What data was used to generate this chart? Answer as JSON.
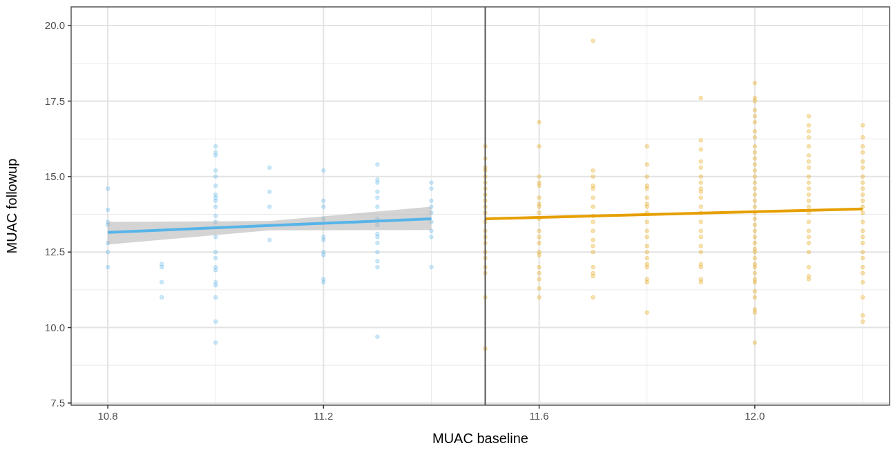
{
  "chart_data": {
    "type": "scatter",
    "xlabel": "MUAC baseline",
    "ylabel": "MUAC followup",
    "xlim": [
      10.732,
      12.25
    ],
    "xticks": [
      10.8,
      11.2,
      11.6,
      {
        "value": 12,
        "label": "12.0"
      }
    ],
    "ylim": [
      7.43,
      20.62
    ],
    "yticks": [
      7.5,
      {
        "value": 10,
        "label": "10.0"
      },
      12.5,
      {
        "value": 15,
        "label": "15.0"
      },
      17.5,
      {
        "value": 20,
        "label": "20.0"
      }
    ],
    "grid": true,
    "marker": "circle",
    "ref_lines": [
      {
        "axis": "x",
        "value": 11.5,
        "color": "#555555"
      }
    ],
    "series": [
      {
        "color": "#56b4e9",
        "x": [
          10.8,
          10.8,
          10.8,
          10.8,
          10.8,
          10.8,
          10.8,
          10.9,
          10.9,
          10.9,
          10.9,
          11.0,
          11.0,
          11.0,
          11.0,
          11.0,
          11.0,
          11.0,
          11.0,
          11.0,
          11.0,
          11.0,
          11.0,
          11.0,
          11.0,
          11.0,
          11.0,
          11.0,
          11.0,
          11.0,
          11.0,
          11.0,
          11.0,
          11.1,
          11.1,
          11.1,
          11.1,
          11.2,
          11.2,
          11.2,
          11.2,
          11.2,
          11.2,
          11.2,
          11.2,
          11.2,
          11.2,
          11.3,
          11.3,
          11.3,
          11.3,
          11.3,
          11.3,
          11.3,
          11.3,
          11.3,
          11.3,
          11.3,
          11.3,
          11.3,
          11.3,
          11.3,
          11.4,
          11.4,
          11.4,
          11.4,
          11.4,
          11.4,
          11.4,
          11.4,
          11.4
        ],
        "values": [
          14.6,
          13.9,
          13.5,
          13.4,
          12.8,
          12.5,
          12.0,
          12.1,
          12.0,
          11.5,
          11.0,
          16.0,
          15.8,
          15.7,
          15.2,
          15.0,
          14.7,
          14.4,
          14.3,
          14.2,
          14.0,
          13.7,
          13.5,
          13.0,
          12.5,
          12.3,
          12.0,
          11.9,
          11.5,
          11.4,
          11.0,
          10.2,
          9.5,
          15.3,
          14.5,
          14.0,
          12.9,
          15.2,
          14.2,
          14.0,
          13.6,
          13.0,
          12.9,
          12.5,
          12.4,
          11.6,
          11.5,
          15.4,
          14.9,
          14.8,
          14.5,
          14.3,
          14.0,
          13.6,
          13.4,
          13.1,
          13.0,
          12.8,
          12.5,
          12.2,
          12.0,
          9.7,
          14.8,
          14.6,
          14.2,
          14.0,
          13.8,
          13.5,
          13.2,
          13.0,
          12.0
        ]
      },
      {
        "color": "#e69f00",
        "x": [
          11.5,
          11.5,
          11.5,
          11.5,
          11.5,
          11.5,
          11.5,
          11.5,
          11.5,
          11.5,
          11.5,
          11.5,
          11.5,
          11.5,
          11.5,
          11.5,
          11.5,
          11.5,
          11.5,
          11.5,
          11.5,
          11.6,
          11.6,
          11.6,
          11.6,
          11.6,
          11.6,
          11.6,
          11.6,
          11.6,
          11.6,
          11.6,
          11.6,
          11.6,
          11.6,
          11.6,
          11.6,
          11.6,
          11.6,
          11.6,
          11.6,
          11.7,
          11.7,
          11.7,
          11.7,
          11.7,
          11.7,
          11.7,
          11.7,
          11.7,
          11.7,
          11.7,
          11.7,
          11.7,
          11.7,
          11.7,
          11.7,
          11.7,
          11.8,
          11.8,
          11.8,
          11.8,
          11.8,
          11.8,
          11.8,
          11.8,
          11.8,
          11.8,
          11.8,
          11.8,
          11.8,
          11.8,
          11.8,
          11.8,
          11.8,
          11.8,
          11.8,
          11.8,
          11.9,
          11.9,
          11.9,
          11.9,
          11.9,
          11.9,
          11.9,
          11.9,
          11.9,
          11.9,
          11.9,
          11.9,
          11.9,
          11.9,
          11.9,
          11.9,
          11.9,
          11.9,
          11.9,
          11.9,
          11.9,
          12.0,
          12.0,
          12.0,
          12.0,
          12.0,
          12.0,
          12.0,
          12.0,
          12.0,
          12.0,
          12.0,
          12.0,
          12.0,
          12.0,
          12.0,
          12.0,
          12.0,
          12.0,
          12.0,
          12.0,
          12.0,
          12.0,
          12.0,
          12.0,
          12.0,
          12.0,
          12.0,
          12.0,
          12.0,
          12.0,
          12.0,
          12.0,
          12.0,
          12.0,
          12.0,
          12.0,
          12.0,
          12.0,
          12.1,
          12.1,
          12.1,
          12.1,
          12.1,
          12.1,
          12.1,
          12.1,
          12.1,
          12.1,
          12.1,
          12.1,
          12.1,
          12.1,
          12.1,
          12.1,
          12.1,
          12.1,
          12.1,
          12.1,
          12.1,
          12.1,
          12.1,
          12.2,
          12.2,
          12.2,
          12.2,
          12.2,
          12.2,
          12.2,
          12.2,
          12.2,
          12.2,
          12.2,
          12.2,
          12.2,
          12.2,
          12.2,
          12.2,
          12.2,
          12.2,
          12.2,
          12.2,
          12.2,
          12.2,
          12.2,
          12.2,
          12.2
        ],
        "values": [
          16.0,
          15.6,
          15.3,
          15.2,
          15.0,
          14.8,
          14.6,
          14.4,
          14.2,
          14.0,
          13.8,
          13.5,
          13.2,
          13.0,
          12.8,
          12.5,
          12.3,
          12.0,
          11.8,
          11.0,
          9.3,
          16.8,
          16.0,
          15.0,
          14.8,
          14.7,
          14.3,
          14.1,
          14.0,
          13.8,
          13.6,
          13.2,
          13.0,
          12.8,
          12.5,
          12.4,
          12.0,
          11.8,
          11.6,
          11.3,
          11.0,
          19.5,
          15.2,
          15.0,
          14.7,
          14.6,
          14.3,
          14.0,
          13.7,
          13.5,
          13.2,
          12.9,
          12.7,
          12.5,
          12.0,
          11.8,
          11.7,
          11.0,
          16.0,
          15.4,
          15.0,
          14.7,
          14.6,
          14.3,
          14.1,
          14.0,
          13.8,
          13.5,
          13.2,
          13.0,
          12.7,
          12.5,
          12.3,
          12.1,
          12.0,
          11.6,
          11.5,
          10.5,
          17.6,
          16.2,
          15.9,
          15.5,
          15.3,
          15.0,
          14.8,
          14.6,
          14.5,
          14.3,
          14.0,
          13.8,
          13.5,
          13.2,
          13.0,
          12.7,
          12.5,
          12.1,
          12.0,
          11.6,
          11.5,
          18.1,
          17.6,
          17.5,
          17.2,
          17.0,
          16.8,
          16.5,
          16.3,
          16.0,
          15.8,
          15.6,
          15.4,
          15.2,
          15.0,
          14.8,
          14.6,
          14.4,
          14.2,
          14.0,
          13.8,
          13.6,
          13.4,
          13.2,
          13.0,
          12.8,
          12.6,
          12.5,
          12.3,
          12.1,
          12.0,
          11.8,
          11.6,
          11.5,
          11.2,
          11.0,
          10.6,
          10.5,
          9.5,
          17.0,
          16.7,
          16.5,
          16.3,
          16.0,
          15.7,
          15.5,
          15.3,
          15.0,
          14.8,
          14.6,
          14.4,
          14.2,
          14.0,
          13.8,
          13.5,
          13.2,
          13.0,
          12.8,
          12.5,
          12.0,
          11.7,
          11.6,
          16.7,
          16.3,
          16.0,
          15.8,
          15.5,
          15.3,
          15.0,
          14.8,
          14.6,
          14.4,
          14.2,
          14.0,
          13.8,
          13.5,
          13.2,
          13.0,
          12.8,
          12.5,
          12.3,
          12.0,
          11.8,
          11.5,
          11.0,
          10.4,
          10.2
        ]
      },
      {
        "type": "line",
        "marker": "none",
        "color": "#56b4e9",
        "x": [
          10.8,
          11.1,
          11.4
        ],
        "values": [
          13.15,
          13.38,
          13.6
        ],
        "lower": [
          12.75,
          13.22,
          13.23
        ],
        "upper": [
          13.5,
          13.53,
          14.0
        ]
      },
      {
        "type": "line",
        "marker": "none",
        "color": "#e69f00",
        "x": [
          11.5,
          12.2
        ],
        "values": [
          13.6,
          13.93
        ]
      }
    ]
  }
}
